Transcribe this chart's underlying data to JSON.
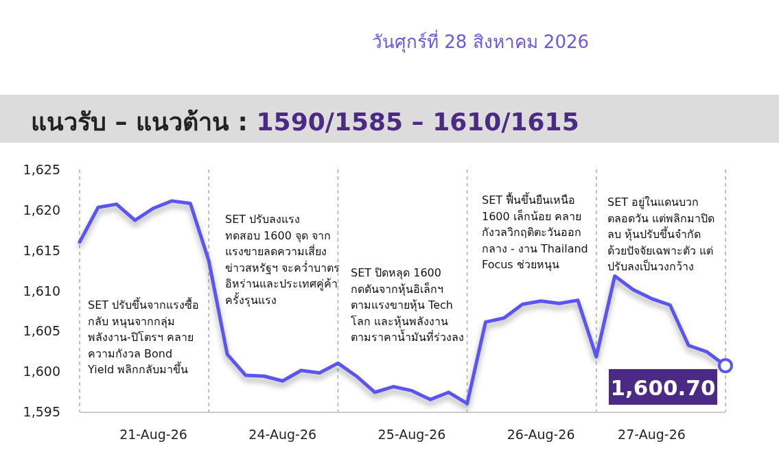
{
  "chart_data": {
    "type": "line",
    "title": "แนวรับ – แนวต้าน : 1590/1585 – 1610/1615",
    "subtitle": "วันศุกร์ที่ 28 สิงหาคม 2026",
    "categories": [
      null,
      null,
      null,
      null,
      "21-Aug-26",
      null,
      null,
      null,
      null,
      null,
      null,
      "24-Aug-26",
      null,
      null,
      null,
      null,
      null,
      null,
      "25-Aug-26",
      null,
      null,
      null,
      null,
      null,
      null,
      "26-Aug-26",
      null,
      null,
      null,
      null,
      null,
      "27-Aug-26",
      null,
      null,
      null,
      null
    ],
    "series": [
      {
        "color": "#5a55f0",
        "values": [
          1616.0,
          1620.3,
          1620.7,
          1618.7,
          1620.2,
          1621.1,
          1620.8,
          1613.7,
          1602.1,
          1599.5,
          1599.4,
          1598.8,
          1600.1,
          1599.8,
          1601.0,
          1599.4,
          1597.4,
          1598.1,
          1597.6,
          1596.5,
          1597.4,
          1596.0,
          1606.1,
          1606.6,
          1608.3,
          1608.7,
          1608.4,
          1608.8,
          1601.8,
          1611.8,
          1610.1,
          1609.0,
          1608.2,
          1603.2,
          1602.4,
          1600.7
        ]
      },
      {
        "type": "scatter",
        "color": "#5a55f0",
        "values": [
          null,
          null,
          null,
          null,
          null,
          null,
          null,
          null,
          null,
          null,
          null,
          null,
          null,
          null,
          null,
          null,
          null,
          null,
          null,
          null,
          null,
          null,
          null,
          null,
          null,
          null,
          null,
          null,
          null,
          null,
          null,
          null,
          null,
          null,
          null,
          1600.7
        ]
      }
    ],
    "ylim": [
      1595,
      1625
    ],
    "yticks": [
      {
        "value": 1595,
        "label": "1,595"
      },
      {
        "value": 1600,
        "label": "1,600"
      },
      {
        "value": 1605,
        "label": "1,605"
      },
      {
        "value": 1610,
        "label": "1,610"
      },
      {
        "value": 1615,
        "label": "1,615"
      },
      {
        "value": 1620,
        "label": "1,620"
      },
      {
        "value": 1625,
        "label": "1,625"
      }
    ],
    "grid": "x",
    "annotations": [
      "SET ปรับขึ้นจากแรงซื้อ\nกลับ หนุนจากกลุ่ม\nพลังงาน-ปิโตรฯ คลาย\nความกังวล Bond\nYield พลิกกลับมาขึ้น",
      "SET ปรับลงแรง\nทดสอบ 1600 จุด จาก\nแรงขายลดความเสี่ยง\nข่าวสหรัฐฯ จะคว่ำบาตร\nอิหร่านและประเทศคู่ค้า\nครั้งรุนแรง",
      "SET ปิดหลุด 1600\nกดดันจากหุ้นอิเล็กฯ\nตามแรงขายหุ้น Tech\nโลก และหุ้นพลังงาน\nตามราคาน้ำมันที่ร่วงลง",
      "SET ฟื้นขึ้นยืนเหนือ\n1600 เล็กน้อย คลาย\nกังวลวิกฤติตะวันออก\nกลาง - งาน Thailand\nFocus ช่วยหนุน",
      "SET อยู่ในแดนบวก\nตลอดวัน แต่พลิกมาปิด\nลบ หุ้นปรับขึ้นจำกัด\nด้วยปัจจัยเฉพาะตัว แต่\nปรับลงเป็นวงกว้าง",
      "1,600.70"
    ]
  }
}
